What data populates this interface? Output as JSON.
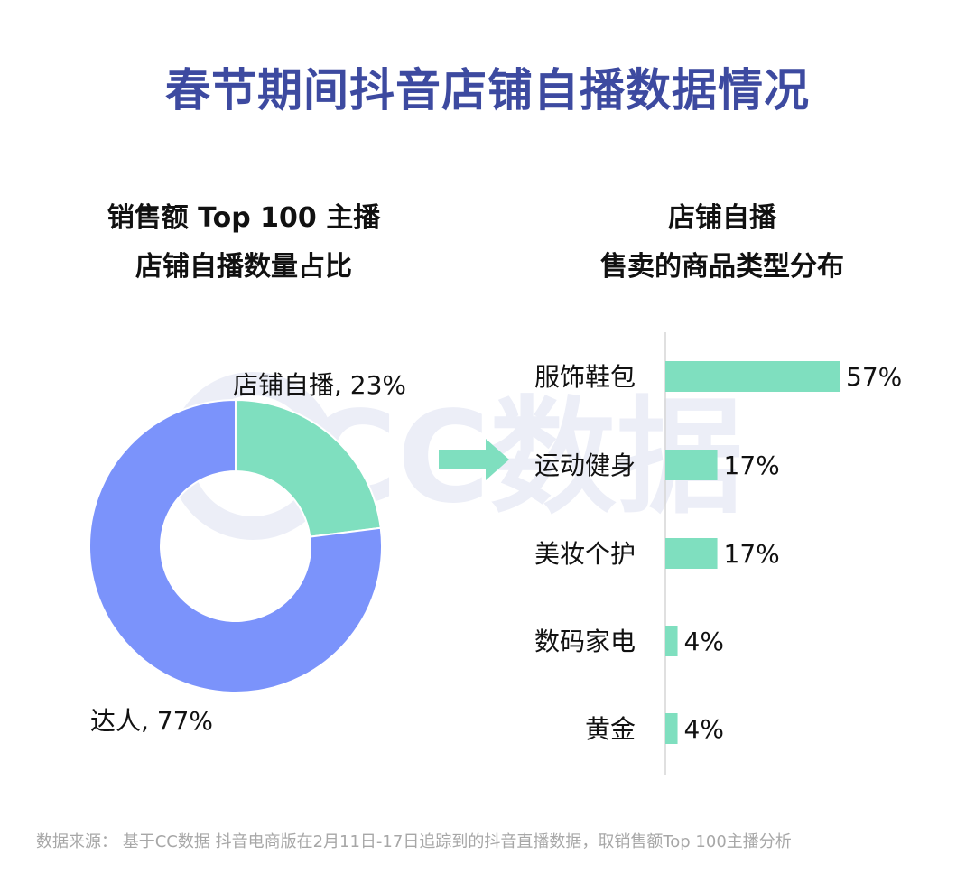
{
  "title": "春节期间抖音店铺自播数据情况",
  "watermark": {
    "text": "CC数据"
  },
  "left_subtitle": {
    "line1": "销售额 Top 100 主播",
    "line2": "店铺自播数量占比"
  },
  "right_subtitle": {
    "line1": "店铺自播",
    "line2": "售卖的商品类型分布"
  },
  "source": "数据来源： 基于CC数据 抖音电商版在2月11日-17日追踪到的抖音直播数据，取销售额Top 100主播分析",
  "colors": {
    "title": "#3d4aa0",
    "green": "#7fdfbf",
    "blue": "#7b93fb",
    "arrow": "#7fdfbf",
    "axis": "#d6d6d6",
    "watermark": "#eceef7"
  },
  "chart_data": [
    {
      "type": "pie",
      "subtype": "donut",
      "title": "销售额 Top 100 主播 店铺自播数量占比",
      "slices": [
        {
          "label": "店铺自播, 23%",
          "name": "店铺自播",
          "value": 23,
          "color": "#7fdfbf"
        },
        {
          "label": "达人, 77%",
          "name": "达人",
          "value": 77,
          "color": "#7b93fb"
        }
      ]
    },
    {
      "type": "bar",
      "orientation": "horizontal",
      "title": "店铺自播 售卖的商品类型分布",
      "categories": [
        "服饰鞋包",
        "运动健身",
        "美妆个护",
        "数码家电",
        "黄金"
      ],
      "values": [
        57,
        17,
        17,
        4,
        4
      ],
      "labels": [
        "57%",
        "17%",
        "17%",
        "4%",
        "4%"
      ],
      "xlim": [
        0,
        57
      ],
      "color": "#7fdfbf"
    }
  ]
}
